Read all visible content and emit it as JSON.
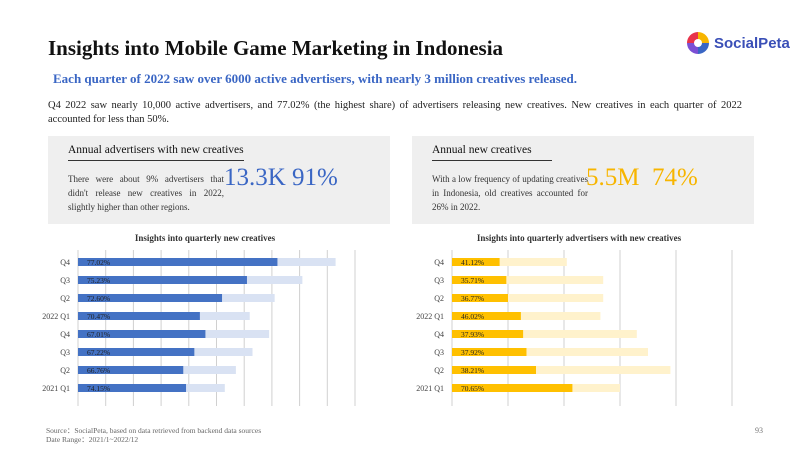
{
  "brand": {
    "name": "SocialPeta",
    "colors": [
      "#e8334a",
      "#f7b500",
      "#3a66c4",
      "#7b4fd4"
    ]
  },
  "title": "Insights into Mobile Game Marketing in Indonesia",
  "subtitle": "Each quarter of 2022 saw over 6000 active advertisers, with nearly 3 million creatives released.",
  "intro": "Q4 2022 saw nearly 10,000 active advertisers, and 77.02% (the highest share) of advertisers releasing new creatives. New creatives in each quarter of 2022 accounted for less than 50%.",
  "cards": [
    {
      "title": "Annual advertisers with new creatives",
      "text": "There were about 9% advertisers that didn't release new creatives in 2022, slightly higher than other regions.",
      "stat": "13.3K 91%",
      "color": "#3a66c4"
    },
    {
      "title": "Annual new creatives",
      "text": "With a low frequency of updating creatives in Indonesia, old creatives accounted for 26% in 2022.",
      "stat": "5.5M  74%",
      "color": "#f7b500"
    }
  ],
  "chart_data": [
    {
      "type": "bar",
      "orientation": "horizontal",
      "stacked": "overlay",
      "title": "Insights into quarterly new creatives",
      "categories": [
        "Q4",
        "Q3",
        "Q2",
        "2022 Q1",
        "Q4",
        "Q3",
        "Q2",
        "2021 Q1"
      ],
      "series": [
        {
          "values": [
            9.3,
            8.1,
            7.1,
            6.2,
            6.9,
            6.3,
            5.7,
            5.3
          ],
          "color": "#d9e2f3"
        },
        {
          "values": [
            7.2,
            6.1,
            5.2,
            4.4,
            4.6,
            4.2,
            3.8,
            3.9
          ],
          "color": "#4472c4"
        }
      ],
      "labels": [
        "77.02%",
        "75.23%",
        "72.60%",
        "70.47%",
        "67.01%",
        "67.22%",
        "66.76%",
        "74.15%"
      ],
      "xticks": [
        "0 K",
        "1 K",
        "2 K",
        "3 K",
        "4 K",
        "5 K",
        "6 K",
        "7 K",
        "8 K",
        "9 K",
        "10 K"
      ],
      "xlim": [
        0,
        10
      ],
      "grid": true
    },
    {
      "type": "bar",
      "orientation": "horizontal",
      "stacked": "overlay",
      "title": "Insights into quarterly advertisers with new creatives",
      "categories": [
        "Q4",
        "Q3",
        "Q2",
        "2022 Q1",
        "Q4",
        "Q3",
        "Q2",
        "2021 Q1"
      ],
      "series": [
        {
          "values": [
            2.05,
            2.7,
            2.7,
            2.65,
            3.3,
            3.5,
            3.9,
            3.0
          ],
          "color": "#fff2cc"
        },
        {
          "values": [
            0.85,
            0.97,
            1.0,
            1.23,
            1.27,
            1.33,
            1.5,
            2.15
          ],
          "color": "#ffc000"
        }
      ],
      "labels": [
        "41.12%",
        "35.71%",
        "36.77%",
        "46.02%",
        "37.93%",
        "37.92%",
        "38.21%",
        "70.65%"
      ],
      "xticks": [
        "0 M",
        "1 M",
        "2 M",
        "3 M",
        "4 M",
        "5 M"
      ],
      "xlim": [
        0,
        5
      ],
      "grid": true
    }
  ],
  "footer": {
    "source": "Source：SocialPeta, based on data retrieved from backend data sources",
    "range": "Date Range：2021/1~2022/12"
  },
  "page_number": "93"
}
